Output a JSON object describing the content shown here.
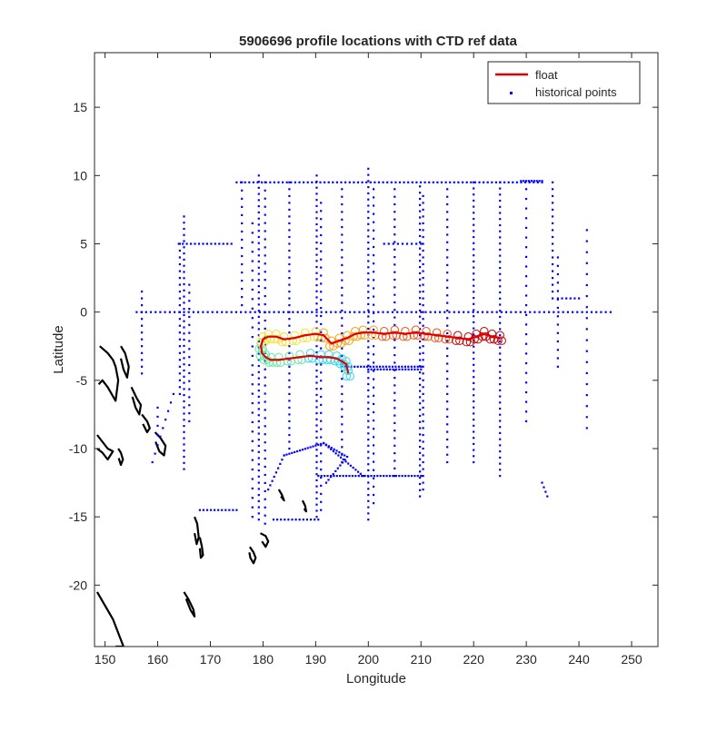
{
  "chart_data": {
    "type": "scatter",
    "title": "5906696 profile locations with CTD ref data",
    "xlabel": "Longitude",
    "ylabel": "Latitude",
    "xlim": [
      148,
      255
    ],
    "ylim": [
      -24.5,
      19
    ],
    "xticks": [
      "150",
      "160",
      "170",
      "180",
      "190",
      "200",
      "210",
      "220",
      "230",
      "240",
      "250"
    ],
    "xtick_values": [
      150,
      160,
      170,
      180,
      190,
      200,
      210,
      220,
      230,
      240,
      250
    ],
    "yticks": [
      "15",
      "10",
      "5",
      "0",
      "-5",
      "-10",
      "-15",
      "-20"
    ],
    "ytick_values": [
      15,
      10,
      5,
      0,
      -5,
      -10,
      -15,
      -20
    ],
    "grid": false,
    "legend_position": "top-right",
    "legend": [
      {
        "label": "float",
        "color": "#e00000",
        "marker": "line"
      },
      {
        "label": "historical points",
        "color": "#0000ff",
        "marker": "dot"
      }
    ],
    "series": [
      {
        "name": "float",
        "color_scale": [
          "#2fd9e6",
          "#66e8a0",
          "#f2e02e",
          "#f5a010",
          "#f05010",
          "#c00000"
        ],
        "line_color": "#e00000",
        "x": [
          196.2,
          195.8,
          195.0,
          194.0,
          192.5,
          191.0,
          189.0,
          187.0,
          185.0,
          183.0,
          181.5,
          180.5,
          179.8,
          179.6,
          180.0,
          181.0,
          182.5,
          184.0,
          186.0,
          188.0,
          190.0,
          191.5,
          193.0,
          194.5,
          196.0,
          197.5,
          199.0,
          201.0,
          203.0,
          205.0,
          207.0,
          209.0,
          211.0,
          213.0,
          215.0,
          217.0,
          219.0,
          220.5,
          222.0,
          223.5,
          225.0
        ],
        "y": [
          -4.5,
          -3.8,
          -3.6,
          -3.4,
          -3.3,
          -3.3,
          -3.2,
          -3.3,
          -3.4,
          -3.5,
          -3.5,
          -3.3,
          -3.0,
          -2.5,
          -2.0,
          -1.8,
          -1.8,
          -2.0,
          -1.9,
          -1.7,
          -1.6,
          -1.7,
          -2.3,
          -2.1,
          -1.9,
          -1.6,
          -1.5,
          -1.5,
          -1.6,
          -1.5,
          -1.6,
          -1.5,
          -1.6,
          -1.7,
          -1.8,
          -1.9,
          -2.0,
          -1.8,
          -1.6,
          -1.8,
          -1.9
        ]
      },
      {
        "name": "historical points",
        "color": "#0000ff",
        "groups": [
          {
            "x": [
              156,
              246
            ],
            "y": [
              0,
              0
            ],
            "step": 0.9
          },
          {
            "x": [
              179.2,
              179.2
            ],
            "y": [
              10,
              -15.2
            ],
            "step": 0.45
          },
          {
            "x": [
              180.4,
              180.4
            ],
            "y": [
              9.5,
              -15.5
            ],
            "step": 0.6
          },
          {
            "x": [
              190.2,
              190.2
            ],
            "y": [
              10,
              -15.0
            ],
            "step": 0.45
          },
          {
            "x": [
              191.0,
              191.0
            ],
            "y": [
              8.0,
              -14.5
            ],
            "step": 0.6
          },
          {
            "x": [
              200.0,
              200.0
            ],
            "y": [
              10.5,
              -15.2
            ],
            "step": 0.45
          },
          {
            "x": [
              201.0,
              201.0
            ],
            "y": [
              9.0,
              -14.0
            ],
            "step": 0.6
          },
          {
            "x": [
              209.8,
              209.8
            ],
            "y": [
              9.2,
              -13.5
            ],
            "step": 0.45
          },
          {
            "x": [
              210.4,
              210.4
            ],
            "y": [
              8.5,
              -13.0
            ],
            "step": 0.5
          },
          {
            "x": [
              220.0,
              220.0
            ],
            "y": [
              9.5,
              -11.0
            ],
            "step": 0.45
          },
          {
            "x": [
              225.0,
              225.0
            ],
            "y": [
              9.5,
              -12.0
            ],
            "step": 0.45
          },
          {
            "x": [
              165.0,
              165.0
            ],
            "y": [
              7.0,
              -11.5
            ],
            "step": 0.45
          },
          {
            "x": [
              164.2,
              164.2
            ],
            "y": [
              5.0,
              -6.0
            ],
            "step": 0.5
          },
          {
            "x": [
              166.0,
              166.0
            ],
            "y": [
              2.0,
              -8.0
            ],
            "step": 0.6
          },
          {
            "x": [
              235.0,
              235.0
            ],
            "y": [
              9.5,
              1.0
            ],
            "step": 0.5
          },
          {
            "x": [
              236.0,
              236.0
            ],
            "y": [
              4.0,
              -4.0
            ],
            "step": 0.6
          },
          {
            "x": [
              241.5,
              241.5
            ],
            "y": [
              6.0,
              -8.5
            ],
            "step": 0.8
          },
          {
            "x": [
              185.0,
              185.0
            ],
            "y": [
              9.5,
              -10.0
            ],
            "step": 0.5
          },
          {
            "x": [
              195.0,
              195.0
            ],
            "y": [
              9.0,
              -11.0
            ],
            "step": 0.55
          },
          {
            "x": [
              205.0,
              205.0
            ],
            "y": [
              9.0,
              -12.0
            ],
            "step": 0.55
          },
          {
            "x": [
              215.0,
              215.0
            ],
            "y": [
              9.0,
              -11.0
            ],
            "step": 0.55
          },
          {
            "x": [
              230.0,
              230.0
            ],
            "y": [
              9.0,
              -8.0
            ],
            "step": 0.7
          },
          {
            "x": [
              157.0,
              157.0
            ],
            "y": [
              1.5,
              -4.5
            ],
            "step": 0.5
          },
          {
            "x": [
              176.0,
              176.0
            ],
            "y": [
              9.5,
              0.5
            ],
            "step": 0.6
          },
          {
            "x": [
              178.0,
              178.0
            ],
            "y": [
              6.5,
              -15.0
            ],
            "step": 0.7
          },
          {
            "x": [
              160.0,
              160.0
            ],
            "y": [
              -7.0,
              -9.0
            ],
            "step": 0.6
          },
          {
            "x": [
              175.0,
              233.0
            ],
            "y": [
              9.5,
              9.5
            ],
            "step": 0.8
          },
          {
            "x": [
              164.0,
              174.0
            ],
            "y": [
              5.0,
              5.0
            ],
            "step": 0.8
          },
          {
            "x": [
              190.5,
              210.0
            ],
            "y": [
              -12.0,
              -12.0
            ],
            "step": 0.6
          },
          {
            "x": [
              200.0,
              210.0
            ],
            "y": [
              -4.2,
              -4.2
            ],
            "step": 0.6
          },
          {
            "x": [
              195.0,
              210.0
            ],
            "y": [
              -4.0,
              -4.0
            ],
            "step": 0.6
          },
          {
            "x": [
              182.0,
              190.5
            ],
            "y": [
              -15.2,
              -15.2
            ],
            "step": 0.7
          },
          {
            "x": [
              168.0,
              175.0
            ],
            "y": [
              -14.5,
              -14.5
            ],
            "step": 0.7
          },
          {
            "x": [
              184.0,
              191.5
            ],
            "y": [
              -10.5,
              -9.6
            ],
            "step": 0.5
          },
          {
            "x": [
              191.5,
              199.0
            ],
            "y": [
              -9.6,
              -12.0
            ],
            "step": 0.5
          },
          {
            "x": [
              191.5,
              195.5
            ],
            "y": [
              -9.6,
              -10.5
            ],
            "step": 0.5
          },
          {
            "x": [
              184.0,
              181.0
            ],
            "y": [
              -10.5,
              -13.0
            ],
            "step": 0.5
          },
          {
            "x": [
              196.0,
              192.0
            ],
            "y": [
              -10.6,
              -12.5
            ],
            "step": 0.5
          },
          {
            "x": [
              159.0,
              163.0
            ],
            "y": [
              -11.0,
              -6.0
            ],
            "step": 0.8
          },
          {
            "x": [
              203.0,
              210.0
            ],
            "y": [
              5.0,
              5.0
            ],
            "step": 0.9
          },
          {
            "x": [
              229.0,
              233.0
            ],
            "y": [
              9.6,
              9.6
            ],
            "step": 0.5
          },
          {
            "x": [
              233.0,
              234.0
            ],
            "y": [
              -12.5,
              -13.5
            ],
            "step": 0.5
          },
          {
            "x": [
              236.0,
              240.0
            ],
            "y": [
              1.0,
              1.0
            ],
            "step": 0.8
          }
        ]
      }
    ],
    "coastlines": [
      {
        "x": [
          148.5,
          150.0,
          151.5,
          152.5,
          153.5,
          153.0,
          152.0
        ],
        "y": [
          -20.5,
          -21.5,
          -22.5,
          -23.5,
          -24.5,
          -24.5,
          -24.5
        ]
      },
      {
        "x": [
          149.0,
          150.5,
          151.5,
          152.0,
          152.5,
          152.0,
          150.5,
          149.5,
          148.8
        ],
        "y": [
          -2.5,
          -3.0,
          -3.5,
          -4.0,
          -5.0,
          -6.5,
          -5.5,
          -5.0,
          -5.3
        ]
      },
      {
        "x": [
          148.5,
          149.5,
          150.5,
          151.5,
          150.5,
          149.5,
          148.5
        ],
        "y": [
          -9.0,
          -9.5,
          -10.0,
          -10.2,
          -10.8,
          -10.3,
          -10.0
        ]
      },
      {
        "x": [
          153.0,
          153.8,
          154.5,
          154.2,
          153.5,
          153.0
        ],
        "y": [
          -2.5,
          -3.0,
          -4.0,
          -4.8,
          -4.2,
          -3.4
        ]
      },
      {
        "x": [
          155.0,
          156.0,
          156.8,
          156.5,
          155.8,
          155.2
        ],
        "y": [
          -5.5,
          -6.3,
          -6.8,
          -7.5,
          -7.0,
          -6.2
        ]
      },
      {
        "x": [
          157.0,
          158.0,
          158.5,
          158.0,
          157.2
        ],
        "y": [
          -7.5,
          -8.0,
          -8.5,
          -8.8,
          -8.2
        ]
      },
      {
        "x": [
          159.5,
          160.5,
          161.5,
          161.2,
          160.3,
          159.6
        ],
        "y": [
          -8.8,
          -9.2,
          -9.8,
          -10.5,
          -10.2,
          -9.5
        ]
      },
      {
        "x": [
          152.5,
          153.0,
          153.4,
          153.0,
          152.6
        ],
        "y": [
          -10.0,
          -10.3,
          -10.8,
          -11.2,
          -10.7
        ]
      },
      {
        "x": [
          167.0,
          167.5,
          167.8,
          167.4,
          167.0
        ],
        "y": [
          -15.0,
          -15.5,
          -16.5,
          -17.0,
          -16.2
        ]
      },
      {
        "x": [
          168.0,
          168.4,
          168.6,
          168.2,
          168.0
        ],
        "y": [
          -16.5,
          -17.2,
          -17.8,
          -18.0,
          -17.3
        ]
      },
      {
        "x": [
          177.5,
          178.2,
          178.6,
          178.2,
          177.6,
          177.4
        ],
        "y": [
          -17.2,
          -17.6,
          -18.0,
          -18.4,
          -18.0,
          -17.6
        ]
      },
      {
        "x": [
          165.0,
          165.8,
          166.8,
          167.0,
          166.2,
          165.4
        ],
        "y": [
          -20.5,
          -21.0,
          -21.8,
          -22.3,
          -21.8,
          -21.0
        ]
      },
      {
        "x": [
          179.5,
          180.5,
          181.0,
          180.5,
          179.8
        ],
        "y": [
          -16.2,
          -16.4,
          -16.8,
          -17.2,
          -16.8
        ]
      },
      {
        "x": [
          183.0,
          183.6,
          184.0,
          183.4
        ],
        "y": [
          -13.0,
          -13.4,
          -13.8,
          -13.5
        ]
      },
      {
        "x": [
          187.5,
          188.0,
          188.2,
          187.8
        ],
        "y": [
          -13.8,
          -14.2,
          -14.6,
          -14.4
        ]
      }
    ]
  }
}
